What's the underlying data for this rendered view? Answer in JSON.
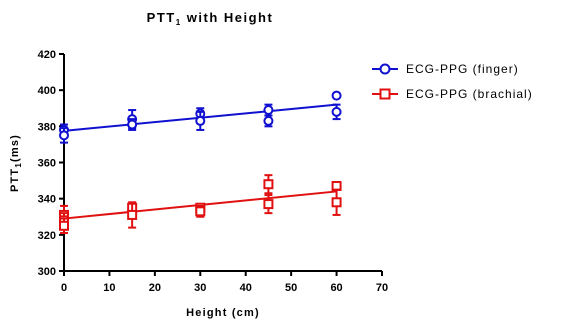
{
  "chart_data": {
    "type": "scatter",
    "title": "PTT",
    "title_sub": "1",
    "title_rest": " with Height",
    "xlabel": "Height (cm)",
    "ylabel": "PTT",
    "ylabel_sub": "1",
    "ylabel_rest": "(ms)",
    "xlim": [
      0,
      70
    ],
    "ylim": [
      300,
      420
    ],
    "xticks": [
      0,
      10,
      20,
      30,
      40,
      50,
      60,
      70
    ],
    "yticks": [
      300,
      320,
      340,
      360,
      380,
      400,
      420
    ],
    "grid": false,
    "legend_position": "top-right",
    "series": [
      {
        "name": "ECG-PPG (finger)",
        "color": "#1010d0",
        "marker": "circle",
        "points": [
          {
            "x": 0,
            "y": 378,
            "err": 3
          },
          {
            "x": 0,
            "y": 375,
            "err": 4
          },
          {
            "x": 15,
            "y": 384,
            "err": 5
          },
          {
            "x": 15,
            "y": 381,
            "err": 3
          },
          {
            "x": 30,
            "y": 387,
            "err": 3
          },
          {
            "x": 30,
            "y": 383,
            "err": 5
          },
          {
            "x": 45,
            "y": 389,
            "err": 3
          },
          {
            "x": 45,
            "y": 383,
            "err": 3
          },
          {
            "x": 60,
            "y": 397,
            "err": 0
          },
          {
            "x": 60,
            "y": 388,
            "err": 4
          }
        ],
        "fit": {
          "x0": 0,
          "y0": 377.5,
          "x1": 60,
          "y1": 392
        }
      },
      {
        "name": "ECG-PPG (brachial)",
        "color": "#e01010",
        "marker": "square",
        "points": [
          {
            "x": 0,
            "y": 331,
            "err": 5
          },
          {
            "x": 0,
            "y": 328,
            "err": 4
          },
          {
            "x": 0,
            "y": 325,
            "err": 4
          },
          {
            "x": 15,
            "y": 335,
            "err": 2
          },
          {
            "x": 15,
            "y": 331,
            "err": 7
          },
          {
            "x": 30,
            "y": 335,
            "err": 2
          },
          {
            "x": 30,
            "y": 333,
            "err": 3
          },
          {
            "x": 45,
            "y": 348,
            "err": 5
          },
          {
            "x": 45,
            "y": 337,
            "err": 5
          },
          {
            "x": 60,
            "y": 347,
            "err": 2
          },
          {
            "x": 60,
            "y": 338,
            "err": 7
          }
        ],
        "fit": {
          "x0": 0,
          "y0": 329,
          "x1": 60,
          "y1": 344
        }
      }
    ]
  }
}
